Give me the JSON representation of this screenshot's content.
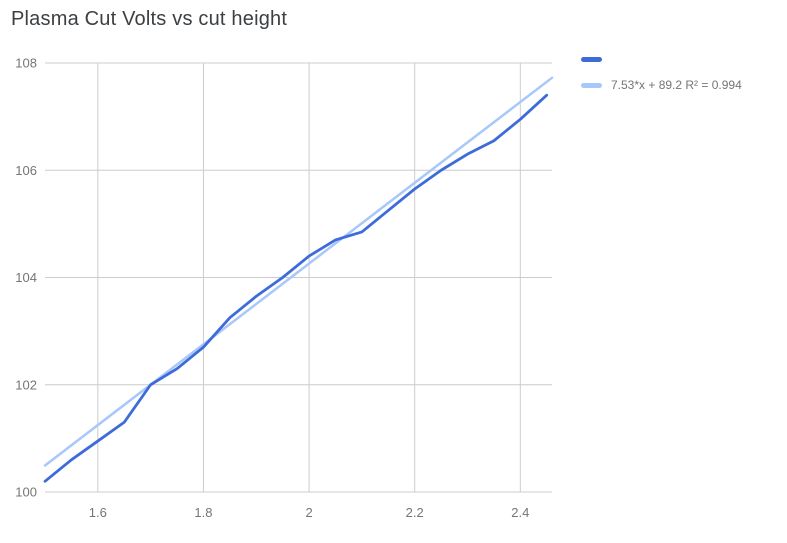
{
  "title": "Plasma Cut Volts vs cut height",
  "legend": {
    "series_label": "",
    "trendline_label": "7.53*x + 89.2 R² = 0.994"
  },
  "colors": {
    "series": "#3d6cd9",
    "trendline": "#a8c7fa",
    "grid": "#cccccc",
    "tick_text": "#757575",
    "title_text": "#3c4043",
    "background": "#ffffff"
  },
  "chart_data": {
    "type": "line",
    "title": "Plasma Cut Volts vs cut height",
    "x": [
      1.5,
      1.55,
      1.6,
      1.65,
      1.7,
      1.75,
      1.8,
      1.85,
      1.9,
      1.95,
      2.0,
      2.05,
      2.1,
      2.15,
      2.2,
      2.25,
      2.3,
      2.35,
      2.4,
      2.45
    ],
    "series": [
      {
        "name": "",
        "values": [
          100.2,
          100.6,
          100.95,
          101.3,
          102.0,
          102.3,
          102.7,
          103.25,
          103.65,
          104.0,
          104.4,
          104.7,
          104.85,
          105.25,
          105.65,
          106.0,
          106.3,
          106.55,
          106.95,
          107.4
        ]
      }
    ],
    "trendline": {
      "slope": 7.53,
      "intercept": 89.2,
      "r2": 0.994,
      "label": "7.53*x + 89.2 R² = 0.994"
    },
    "xlim": [
      1.5,
      2.46
    ],
    "ylim": [
      100,
      108
    ],
    "xticks": [
      1.6,
      1.8,
      2,
      2.2,
      2.4
    ],
    "xtick_labels": [
      "1.6",
      "1.8",
      "2",
      "2.2",
      "2.4"
    ],
    "yticks": [
      100,
      102,
      104,
      106,
      108
    ],
    "ytick_labels": [
      "100",
      "102",
      "104",
      "106",
      "108"
    ],
    "grid": true,
    "legend_position": "top-right"
  }
}
